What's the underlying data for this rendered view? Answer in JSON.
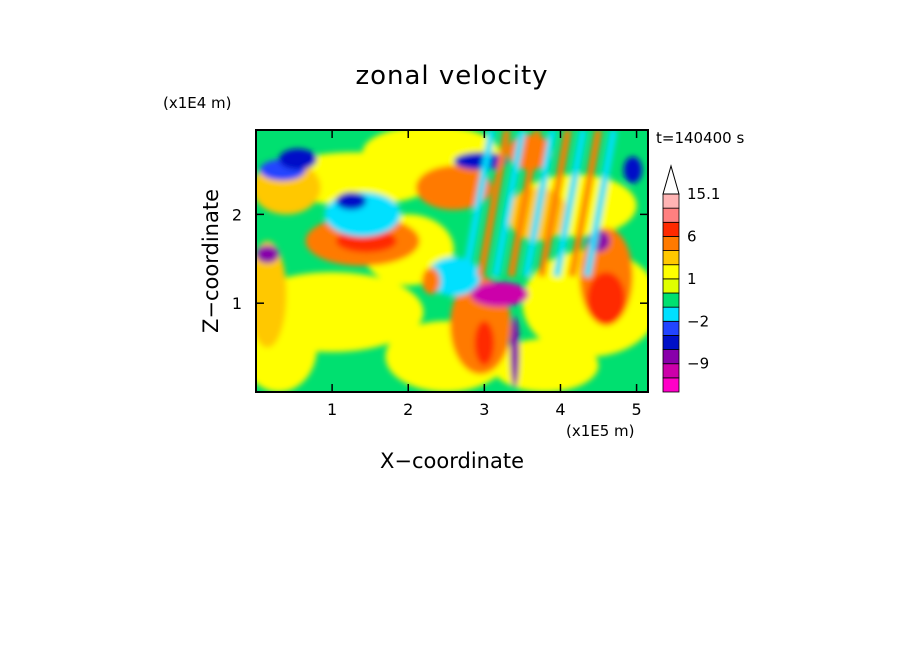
{
  "chart_data": {
    "type": "heatmap",
    "title": "zonal velocity",
    "xlabel": "X−coordinate",
    "ylabel": "Z−coordinate",
    "x_units": "(x1E5 m)",
    "y_units": "(x1E4 m)",
    "time_label": "t=140400 s",
    "xlim": [
      0,
      5.15
    ],
    "ylim": [
      0,
      2.95
    ],
    "x_ticks": [
      1,
      2,
      3,
      4,
      5
    ],
    "x_tick_labels": [
      "1",
      "2",
      "3",
      "4",
      "5"
    ],
    "y_ticks": [
      1,
      2
    ],
    "y_tick_labels": [
      "1",
      "2"
    ],
    "colorbar": {
      "levels": [
        -15,
        -12,
        -9,
        -6,
        -3,
        -2,
        -1,
        0,
        1,
        2,
        3,
        6,
        9,
        12,
        15.1
      ],
      "colors": [
        "#ff00c8",
        "#cc00aa",
        "#8800aa",
        "#0010c8",
        "#2244ff",
        "#00e0ff",
        "#00e070",
        "#e0ff00",
        "#ffff00",
        "#ffc800",
        "#ff7a00",
        "#ff2a00",
        "#ff8080",
        "#ffb4b4"
      ],
      "tick_labels": [
        {
          "value": 15.1,
          "label": "15.1"
        },
        {
          "value": 6,
          "label": "6"
        },
        {
          "value": 1,
          "label": "1"
        },
        {
          "value": -2,
          "label": "−2"
        },
        {
          "value": -9,
          "label": "−9"
        }
      ],
      "extend": "max"
    },
    "features": [
      {
        "x": 3.2,
        "z": 1.1,
        "value": -12
      },
      {
        "x": 1.45,
        "z": 1.7,
        "value": 9
      },
      {
        "x": 3.0,
        "z": 0.6,
        "value": 6
      },
      {
        "x": 0.5,
        "z": 2.5,
        "value": -6
      },
      {
        "x": 3.0,
        "z": 2.5,
        "value": -9
      },
      {
        "x": 0.2,
        "z": 1.55,
        "value": -9
      },
      {
        "x": 4.5,
        "z": 1.7,
        "value": -9
      },
      {
        "x": 0.5,
        "z": 0.8,
        "value": 1
      }
    ]
  },
  "colors": {
    "background": "#ffffff",
    "frame": "#000000"
  }
}
